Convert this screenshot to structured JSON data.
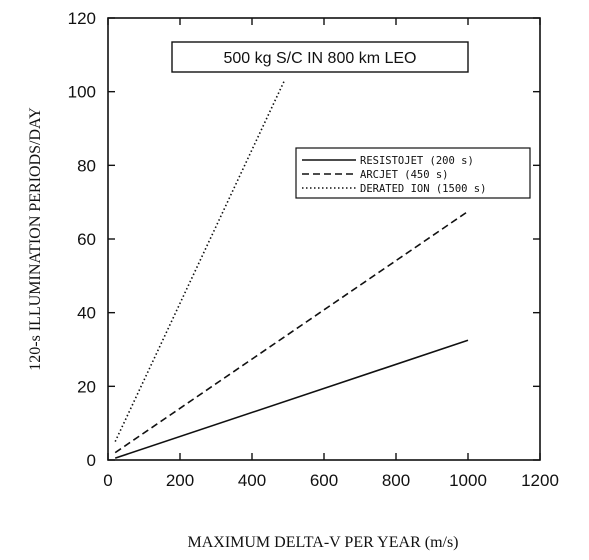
{
  "chart_data": {
    "type": "line",
    "title": "500 kg S/C IN 800 km LEO",
    "xlabel": "MAXIMUM DELTA-V PER YEAR (m/s)",
    "ylabel": "120-s ILLUMINATION PERIODS/DAY",
    "xlim": [
      0,
      1200
    ],
    "ylim": [
      0,
      120
    ],
    "xticks": [
      "0",
      "200",
      "400",
      "600",
      "800",
      "1000",
      "1200"
    ],
    "yticks": [
      "0",
      "20",
      "40",
      "60",
      "80",
      "100",
      "120"
    ],
    "grid": false,
    "legend_position": "top-right",
    "series": [
      {
        "name": "RESISTOJET (200 s)",
        "style": "solid",
        "x": [
          20,
          1000
        ],
        "y": [
          0.5,
          32.5
        ]
      },
      {
        "name": "ARCJET (450 s)",
        "style": "dashed",
        "x": [
          20,
          1000
        ],
        "y": [
          2,
          67.5
        ]
      },
      {
        "name": "DERATED ION (1500 s)",
        "style": "dotted",
        "x": [
          20,
          490
        ],
        "y": [
          5,
          103
        ]
      }
    ]
  }
}
